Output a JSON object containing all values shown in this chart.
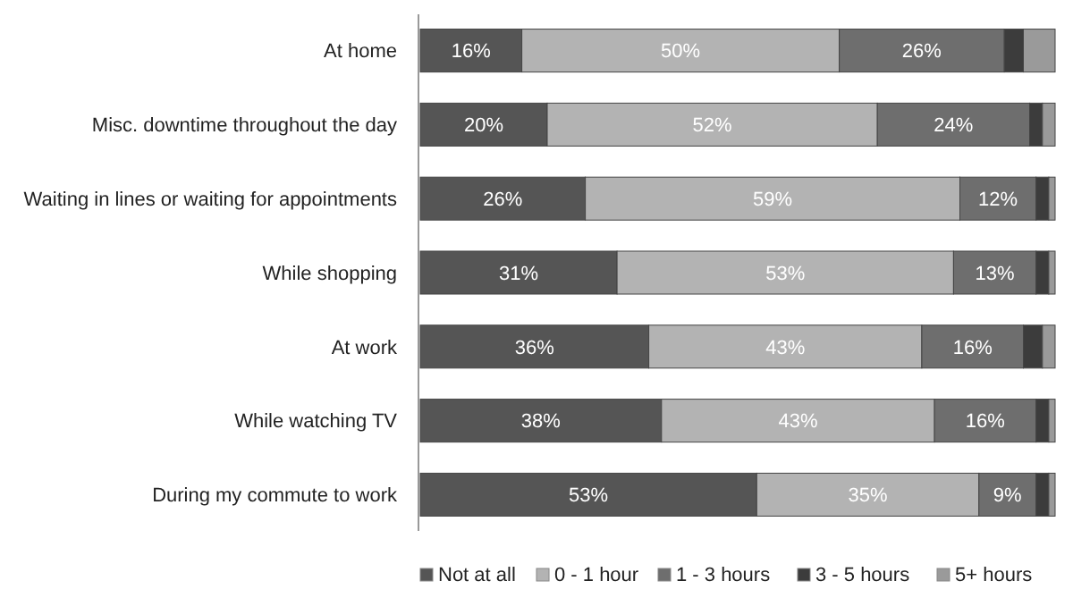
{
  "chart_data": {
    "type": "bar",
    "orientation": "horizontal",
    "stacked": true,
    "legend": "bottom",
    "xlim": [
      0,
      100
    ],
    "categories": [
      "At home",
      "Misc. downtime throughout the day",
      "Waiting in lines or waiting for appointments",
      "While shopping",
      "At work",
      "While watching TV",
      "During my commute to work"
    ],
    "series": [
      {
        "name": "Not at all",
        "color": "#555555",
        "values": [
          16,
          20,
          26,
          31,
          36,
          38,
          53
        ],
        "value_labels": [
          "16%",
          "20%",
          "26%",
          "31%",
          "36%",
          "38%",
          "53%"
        ]
      },
      {
        "name": "0 - 1 hour",
        "color": "#b3b3b3",
        "values": [
          50,
          52,
          59,
          53,
          43,
          43,
          35
        ],
        "value_labels": [
          "50%",
          "52%",
          "59%",
          "53%",
          "43%",
          "43%",
          "35%"
        ]
      },
      {
        "name": "1 - 3 hours",
        "color": "#6e6e6e",
        "values": [
          26,
          24,
          12,
          13,
          16,
          16,
          9
        ],
        "value_labels": [
          "26%",
          "24%",
          "12%",
          "13%",
          "16%",
          "16%",
          "9%"
        ]
      },
      {
        "name": "3 - 5 hours",
        "color": "#3c3c3c",
        "values": [
          3,
          2,
          2,
          2,
          3,
          2,
          2
        ]
      },
      {
        "name": "5+ hours",
        "color": "#9a9a9a",
        "values": [
          5,
          2,
          1,
          1,
          2,
          1,
          1
        ]
      }
    ]
  }
}
